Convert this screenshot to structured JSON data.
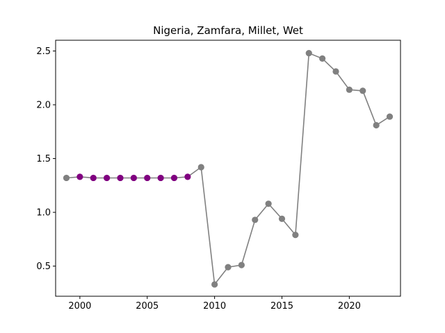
{
  "chart_data": {
    "type": "line",
    "title": "Nigeria, Zamfara, Millet, Wet",
    "xlabel": "",
    "ylabel": "",
    "xlim": [
      1998.2,
      2023.8
    ],
    "ylim": [
      0.22,
      2.6
    ],
    "x_ticks": [
      2000,
      2005,
      2010,
      2015,
      2020
    ],
    "y_ticks": [
      0.5,
      1.0,
      1.5,
      2.0,
      2.5
    ],
    "x_tick_labels": [
      "2000",
      "2005",
      "2010",
      "2015",
      "2020"
    ],
    "y_tick_labels": [
      "0.5",
      "1.0",
      "1.5",
      "2.0",
      "2.5"
    ],
    "grid": false,
    "line_color": "#808080",
    "series": [
      {
        "x": [
          1999,
          2000,
          2001,
          2002,
          2003,
          2004,
          2005,
          2006,
          2007,
          2008,
          2009,
          2010,
          2011,
          2012,
          2013,
          2014,
          2015,
          2016,
          2017,
          2018,
          2019,
          2020,
          2021,
          2022,
          2023
        ],
        "values": [
          1.32,
          1.33,
          1.32,
          1.32,
          1.32,
          1.32,
          1.32,
          1.32,
          1.32,
          1.33,
          1.42,
          0.33,
          0.49,
          0.51,
          0.93,
          1.08,
          0.94,
          0.79,
          2.48,
          2.43,
          2.31,
          2.14,
          2.13,
          1.81,
          1.89
        ],
        "point_colors": [
          "#808080",
          "#800080",
          "#800080",
          "#800080",
          "#800080",
          "#800080",
          "#800080",
          "#800080",
          "#800080",
          "#800080",
          "#808080",
          "#808080",
          "#808080",
          "#808080",
          "#808080",
          "#808080",
          "#808080",
          "#808080",
          "#808080",
          "#808080",
          "#808080",
          "#808080",
          "#808080",
          "#808080",
          "#808080"
        ]
      }
    ]
  }
}
